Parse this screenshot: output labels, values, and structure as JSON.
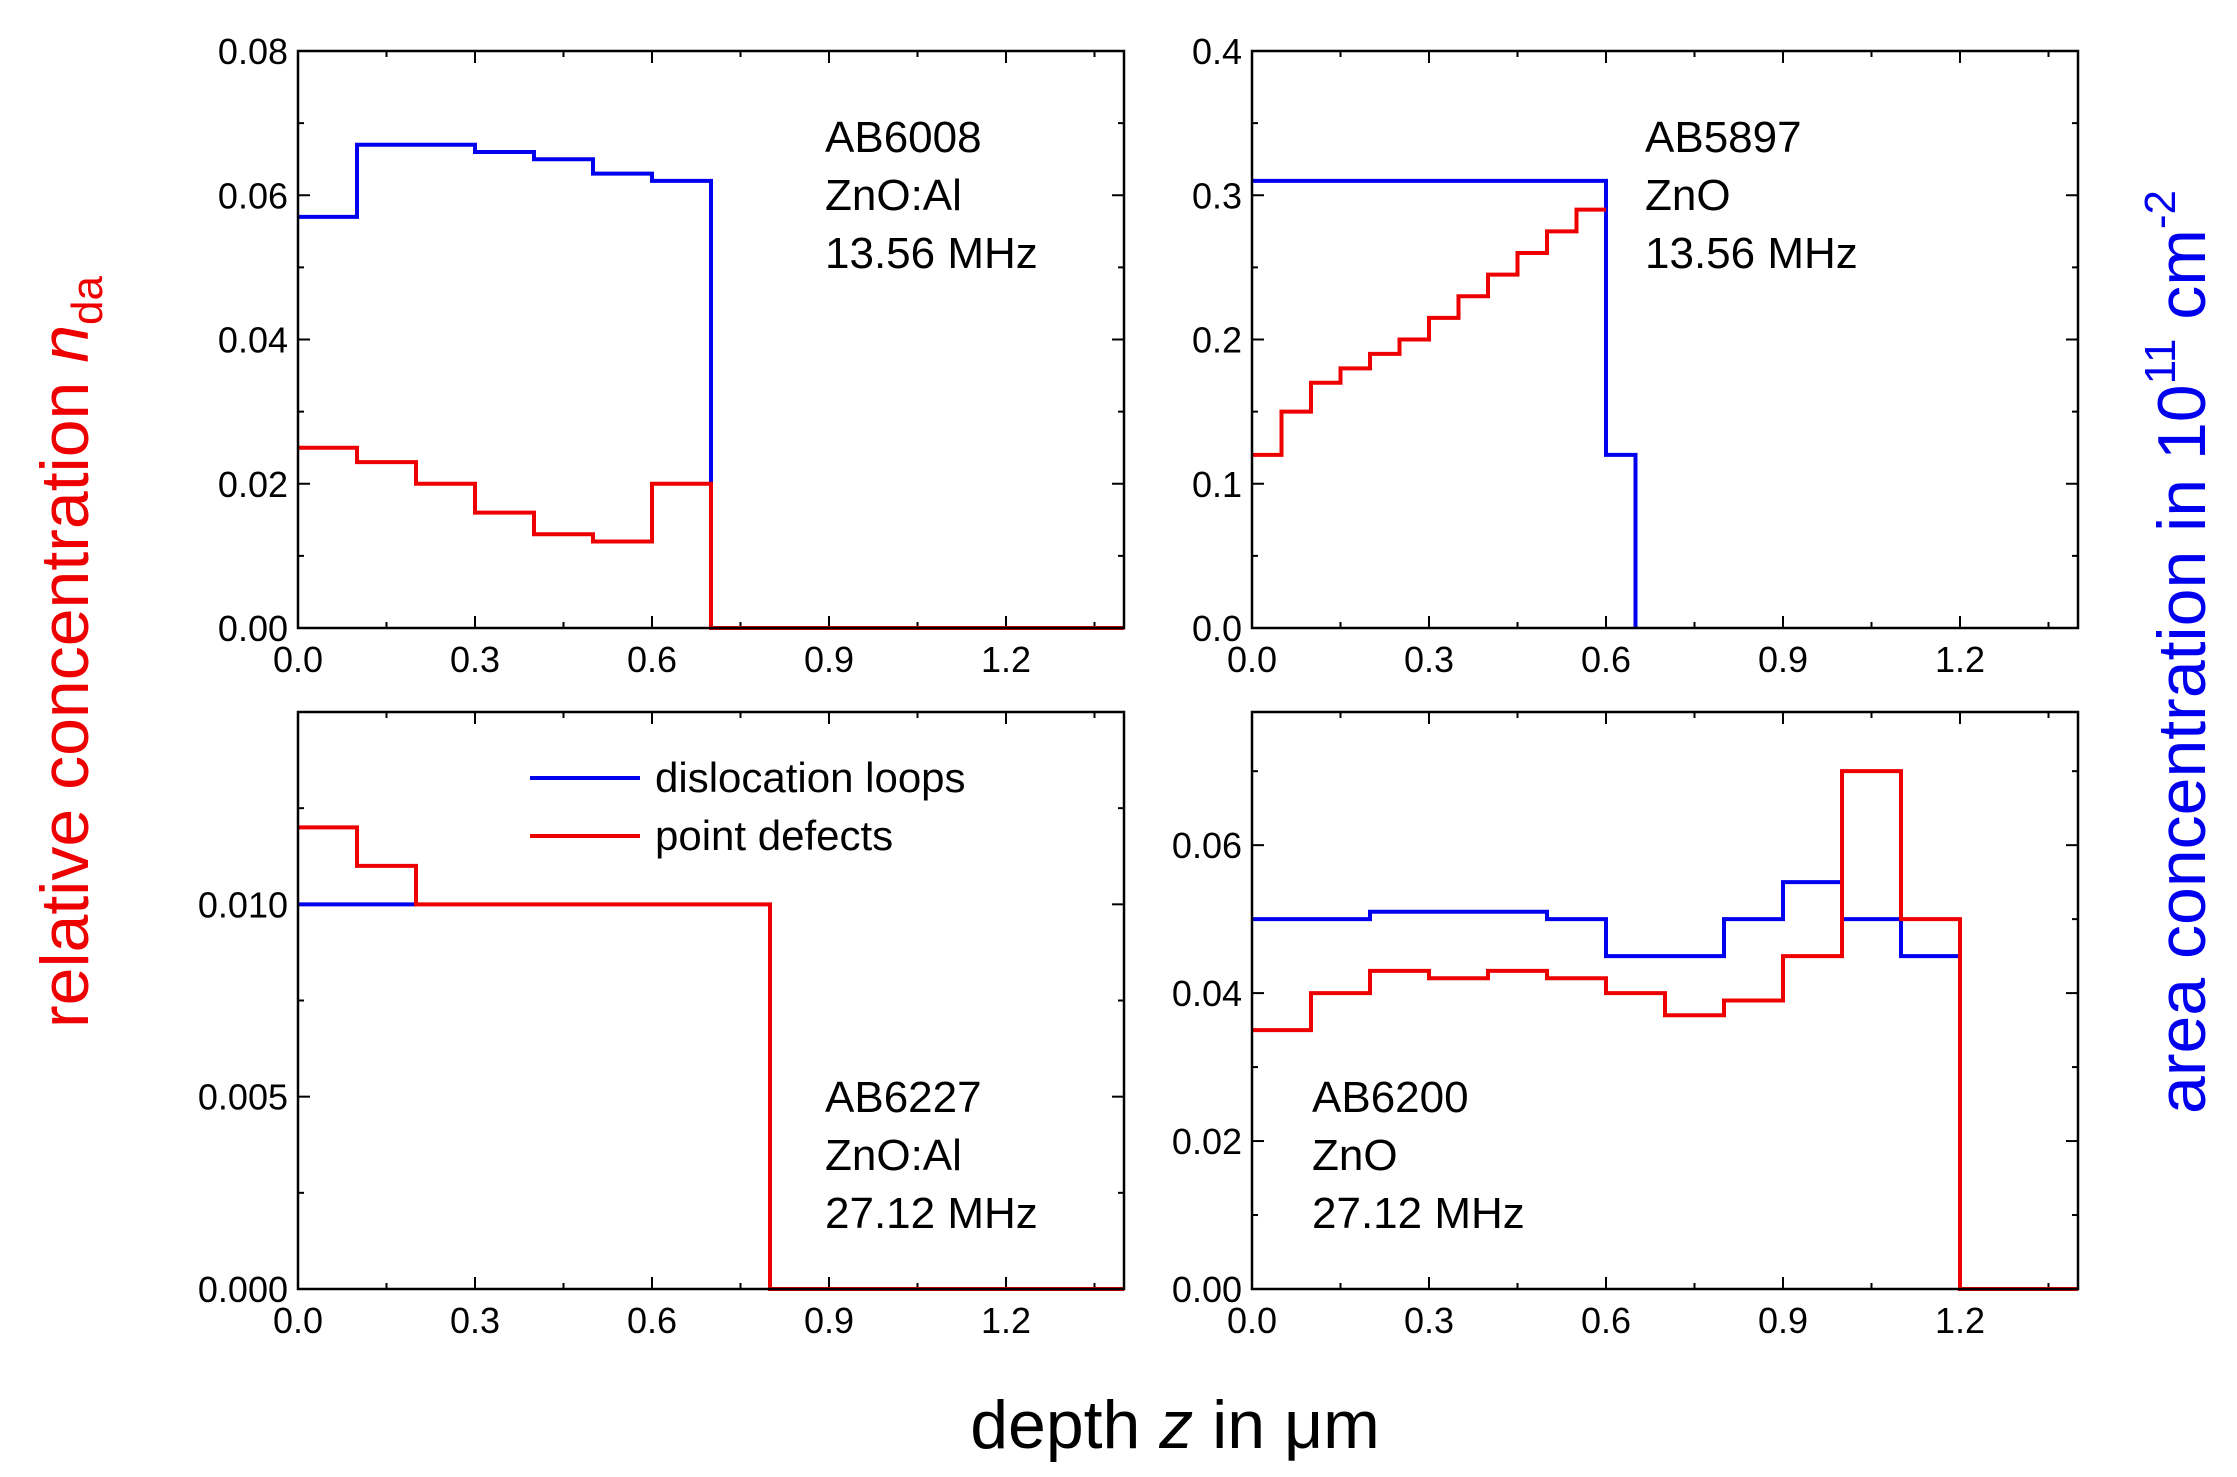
{
  "figure": {
    "xlabel": {
      "pre": "depth ",
      "var": "z",
      "post": " in μm"
    },
    "ylabel_left": {
      "pre": "relative concentration ",
      "var": "n",
      "sub": "da"
    },
    "ylabel_right": {
      "pre": "area concentration in 10",
      "sup1": "11",
      "mid": " cm",
      "sup2": "-2"
    },
    "colors": {
      "dislocation": "#0000ee",
      "point": "#ee0000",
      "left_label": "#ee0000",
      "right_label": "#0000ee"
    },
    "legend": {
      "entries": [
        {
          "label": "dislocation loops",
          "series": "dislocation"
        },
        {
          "label": "point defects",
          "series": "point"
        }
      ]
    }
  },
  "chart_data": [
    {
      "type": "line",
      "step": true,
      "annotation": [
        "AB6008",
        "ZnO:Al",
        "13.56 MHz"
      ],
      "xlim": [
        0,
        1.4
      ],
      "ylim": [
        0,
        0.08
      ],
      "xticks": [
        "0.0",
        "0.3",
        "0.6",
        "0.9",
        "1.2"
      ],
      "xtick_values": [
        0,
        0.3,
        0.6,
        0.9,
        1.2
      ],
      "yticks": [
        "0.00",
        "0.02",
        "0.04",
        "0.06",
        "0.08"
      ],
      "ytick_values": [
        0,
        0.02,
        0.04,
        0.06,
        0.08
      ],
      "series": [
        {
          "name": "dislocation loops",
          "edges": [
            0,
            0.1,
            0.2,
            0.3,
            0.4,
            0.5,
            0.6,
            0.7
          ],
          "values": [
            0.057,
            0.067,
            0.067,
            0.066,
            0.065,
            0.063,
            0.062
          ]
        },
        {
          "name": "point defects",
          "edges": [
            0,
            0.1,
            0.2,
            0.3,
            0.4,
            0.5,
            0.6,
            0.7,
            1.4
          ],
          "values": [
            0.025,
            0.023,
            0.02,
            0.016,
            0.013,
            0.012,
            0.02,
            0.0
          ]
        }
      ]
    },
    {
      "type": "line",
      "step": true,
      "annotation": [
        "AB5897",
        "ZnO",
        "13.56 MHz"
      ],
      "xlim": [
        0,
        1.4
      ],
      "ylim": [
        0,
        0.4
      ],
      "xticks": [
        "0.0",
        "0.3",
        "0.6",
        "0.9",
        "1.2"
      ],
      "xtick_values": [
        0,
        0.3,
        0.6,
        0.9,
        1.2
      ],
      "yticks": [
        "0.0",
        "0.1",
        "0.2",
        "0.3",
        "0.4"
      ],
      "ytick_values": [
        0,
        0.1,
        0.2,
        0.3,
        0.4
      ],
      "series": [
        {
          "name": "dislocation loops",
          "edges": [
            0,
            0.6,
            0.65
          ],
          "values": [
            0.31,
            0.12
          ],
          "drop_to_zero": true
        },
        {
          "name": "point defects",
          "edges": [
            0,
            0.05,
            0.1,
            0.15,
            0.2,
            0.25,
            0.3,
            0.35,
            0.4,
            0.45,
            0.5,
            0.55,
            0.6
          ],
          "values": [
            0.12,
            0.15,
            0.17,
            0.18,
            0.19,
            0.2,
            0.215,
            0.23,
            0.245,
            0.26,
            0.275,
            0.29
          ]
        }
      ]
    },
    {
      "type": "line",
      "step": true,
      "annotation": [
        "AB6227",
        "ZnO:Al",
        "27.12 MHz"
      ],
      "xlim": [
        0,
        1.4
      ],
      "ylim": [
        0,
        0.015
      ],
      "xticks": [
        "0.0",
        "0.3",
        "0.6",
        "0.9",
        "1.2"
      ],
      "xtick_values": [
        0,
        0.3,
        0.6,
        0.9,
        1.2
      ],
      "yticks": [
        "0.000",
        "0.005",
        "0.010"
      ],
      "ytick_values": [
        0,
        0.005,
        0.01
      ],
      "series": [
        {
          "name": "dislocation loops",
          "edges": [
            0,
            0.2
          ],
          "values": [
            0.01
          ]
        },
        {
          "name": "point defects",
          "edges": [
            0,
            0.1,
            0.2,
            0.8,
            1.4
          ],
          "values": [
            0.012,
            0.011,
            0.01,
            0.0
          ]
        }
      ]
    },
    {
      "type": "line",
      "step": true,
      "annotation": [
        "AB6200",
        "ZnO",
        "27.12 MHz"
      ],
      "xlim": [
        0,
        1.4
      ],
      "ylim": [
        0,
        0.078
      ],
      "xticks": [
        "0.0",
        "0.3",
        "0.6",
        "0.9",
        "1.2"
      ],
      "xtick_values": [
        0,
        0.3,
        0.6,
        0.9,
        1.2
      ],
      "yticks": [
        "0.00",
        "0.02",
        "0.04",
        "0.06"
      ],
      "ytick_values": [
        0,
        0.02,
        0.04,
        0.06
      ],
      "series": [
        {
          "name": "dislocation loops",
          "edges": [
            0,
            0.1,
            0.2,
            0.3,
            0.4,
            0.5,
            0.6,
            0.7,
            0.8,
            0.9,
            1.0,
            1.1,
            1.2
          ],
          "values": [
            0.05,
            0.05,
            0.051,
            0.051,
            0.051,
            0.05,
            0.045,
            0.045,
            0.05,
            0.055,
            0.05,
            0.045
          ]
        },
        {
          "name": "point defects",
          "edges": [
            0,
            0.1,
            0.2,
            0.3,
            0.4,
            0.5,
            0.6,
            0.7,
            0.8,
            0.9,
            1.0,
            1.1,
            1.2,
            1.4
          ],
          "values": [
            0.035,
            0.04,
            0.043,
            0.042,
            0.043,
            0.042,
            0.04,
            0.037,
            0.039,
            0.045,
            0.07,
            0.05,
            0.0
          ]
        }
      ]
    }
  ]
}
